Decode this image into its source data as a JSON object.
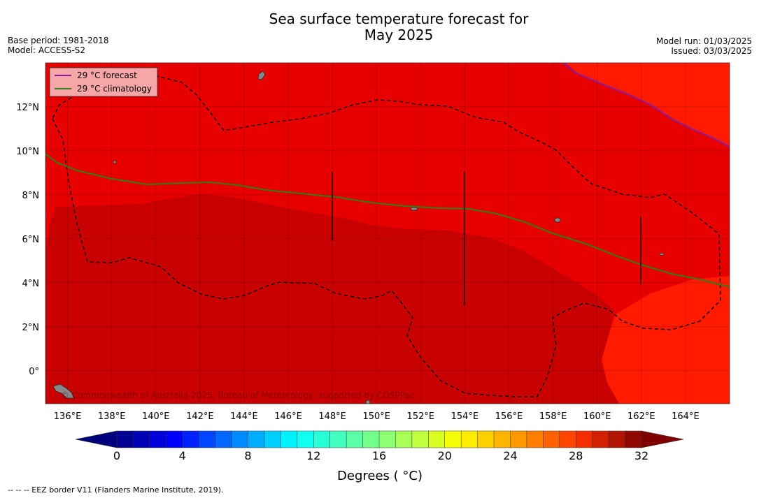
{
  "title": {
    "line1": "Sea surface temperature forecast for",
    "line2": "May 2025"
  },
  "meta": {
    "base_period": "Base period: 1981-2018",
    "model": "Model: ACCESS-S2",
    "model_run": "Model run: 01/03/2025",
    "issued": "Issued: 03/03/2025"
  },
  "map": {
    "lon_range": [
      135,
      166
    ],
    "lat_range": [
      -1.5,
      14
    ],
    "lon_ticks": [
      {
        "value": 136,
        "label": "136°E"
      },
      {
        "value": 138,
        "label": "138°E"
      },
      {
        "value": 140,
        "label": "140°E"
      },
      {
        "value": 142,
        "label": "142°E"
      },
      {
        "value": 144,
        "label": "144°E"
      },
      {
        "value": 146,
        "label": "146°E"
      },
      {
        "value": 148,
        "label": "148°E"
      },
      {
        "value": 150,
        "label": "150°E"
      },
      {
        "value": 152,
        "label": "152°E"
      },
      {
        "value": 154,
        "label": "154°E"
      },
      {
        "value": 156,
        "label": "156°E"
      },
      {
        "value": 158,
        "label": "158°E"
      },
      {
        "value": 160,
        "label": "160°E"
      },
      {
        "value": 162,
        "label": "162°E"
      },
      {
        "value": 164,
        "label": "164°E"
      }
    ],
    "lat_ticks": [
      {
        "value": 0,
        "label": "0°"
      },
      {
        "value": 2,
        "label": "2°N"
      },
      {
        "value": 4,
        "label": "4°N"
      },
      {
        "value": 6,
        "label": "6°N"
      },
      {
        "value": 8,
        "label": "8°N"
      },
      {
        "value": 10,
        "label": "10°N"
      },
      {
        "value": 12,
        "label": "12°N"
      }
    ],
    "colors": {
      "background_29_30": "#e60000",
      "warm_30_31": "#c80000",
      "cool_28_29": "#ff1a00",
      "forecast_line": "#8b1a9e",
      "climatology_line": "#2e7d1a",
      "eez_border": "#000000",
      "land": "#888888"
    },
    "legend": {
      "forecast_label": "29 °C  forecast",
      "climatology_label": "29 °C  climatology"
    },
    "credit": "© Commonwealth of Australia 2025, Bureau of Meteorology, supported by COSPPac"
  },
  "colorbar": {
    "min": 0,
    "max": 32,
    "step": 1,
    "tick_labels": [
      "0",
      "4",
      "8",
      "12",
      "16",
      "20",
      "24",
      "28",
      "32"
    ],
    "title": "Degrees ( °C)",
    "under_color": "#00007f",
    "over_color": "#7f0000"
  },
  "footnote": "--  --  -- EEZ border V11 (Flanders Marine Institute, 2019)."
}
